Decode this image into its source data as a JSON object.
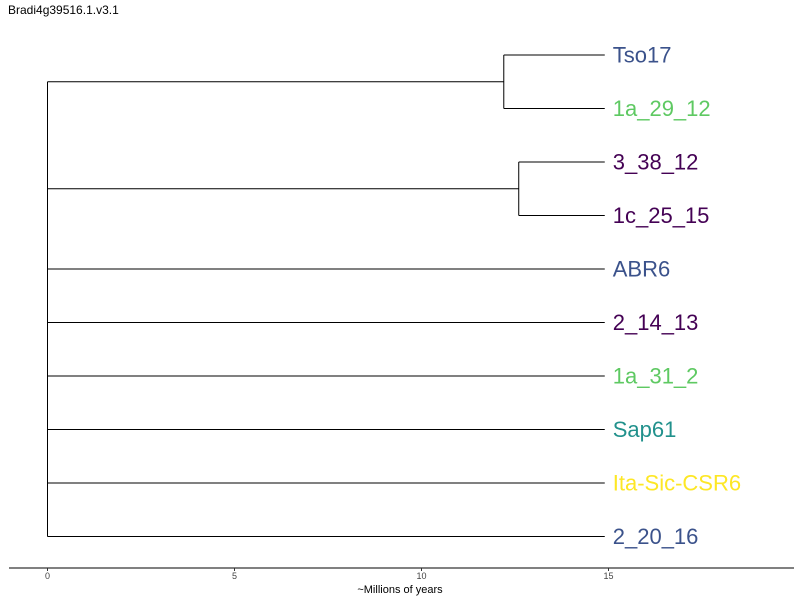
{
  "chart_data": {
    "type": "dendrogram",
    "title": "Bradi4g39516.1.v3.1",
    "xlabel": "~Millions of years",
    "xticks": [
      0,
      5,
      10,
      15
    ],
    "xlim": [
      -1,
      20
    ],
    "tips": [
      {
        "name": "Tso17",
        "color": "#3b528b"
      },
      {
        "name": "1a_29_12",
        "color": "#5ec962"
      },
      {
        "name": "3_38_12",
        "color": "#440154"
      },
      {
        "name": "1c_25_15",
        "color": "#440154"
      },
      {
        "name": "ABR6",
        "color": "#3b528b"
      },
      {
        "name": "2_14_13",
        "color": "#440154"
      },
      {
        "name": "1a_31_2",
        "color": "#5ec962"
      },
      {
        "name": "Sap61",
        "color": "#21918c"
      },
      {
        "name": "Ita-Sic-CSR6",
        "color": "#fde725"
      },
      {
        "name": "2_20_16",
        "color": "#3b528b"
      }
    ],
    "tip_time": 14.9,
    "clades": [
      {
        "members": [
          "Tso17",
          "1a_29_12"
        ],
        "node_time": 12.2
      },
      {
        "members": [
          "3_38_12",
          "1c_25_15"
        ],
        "node_time": 12.6
      }
    ],
    "root_time": 0
  }
}
